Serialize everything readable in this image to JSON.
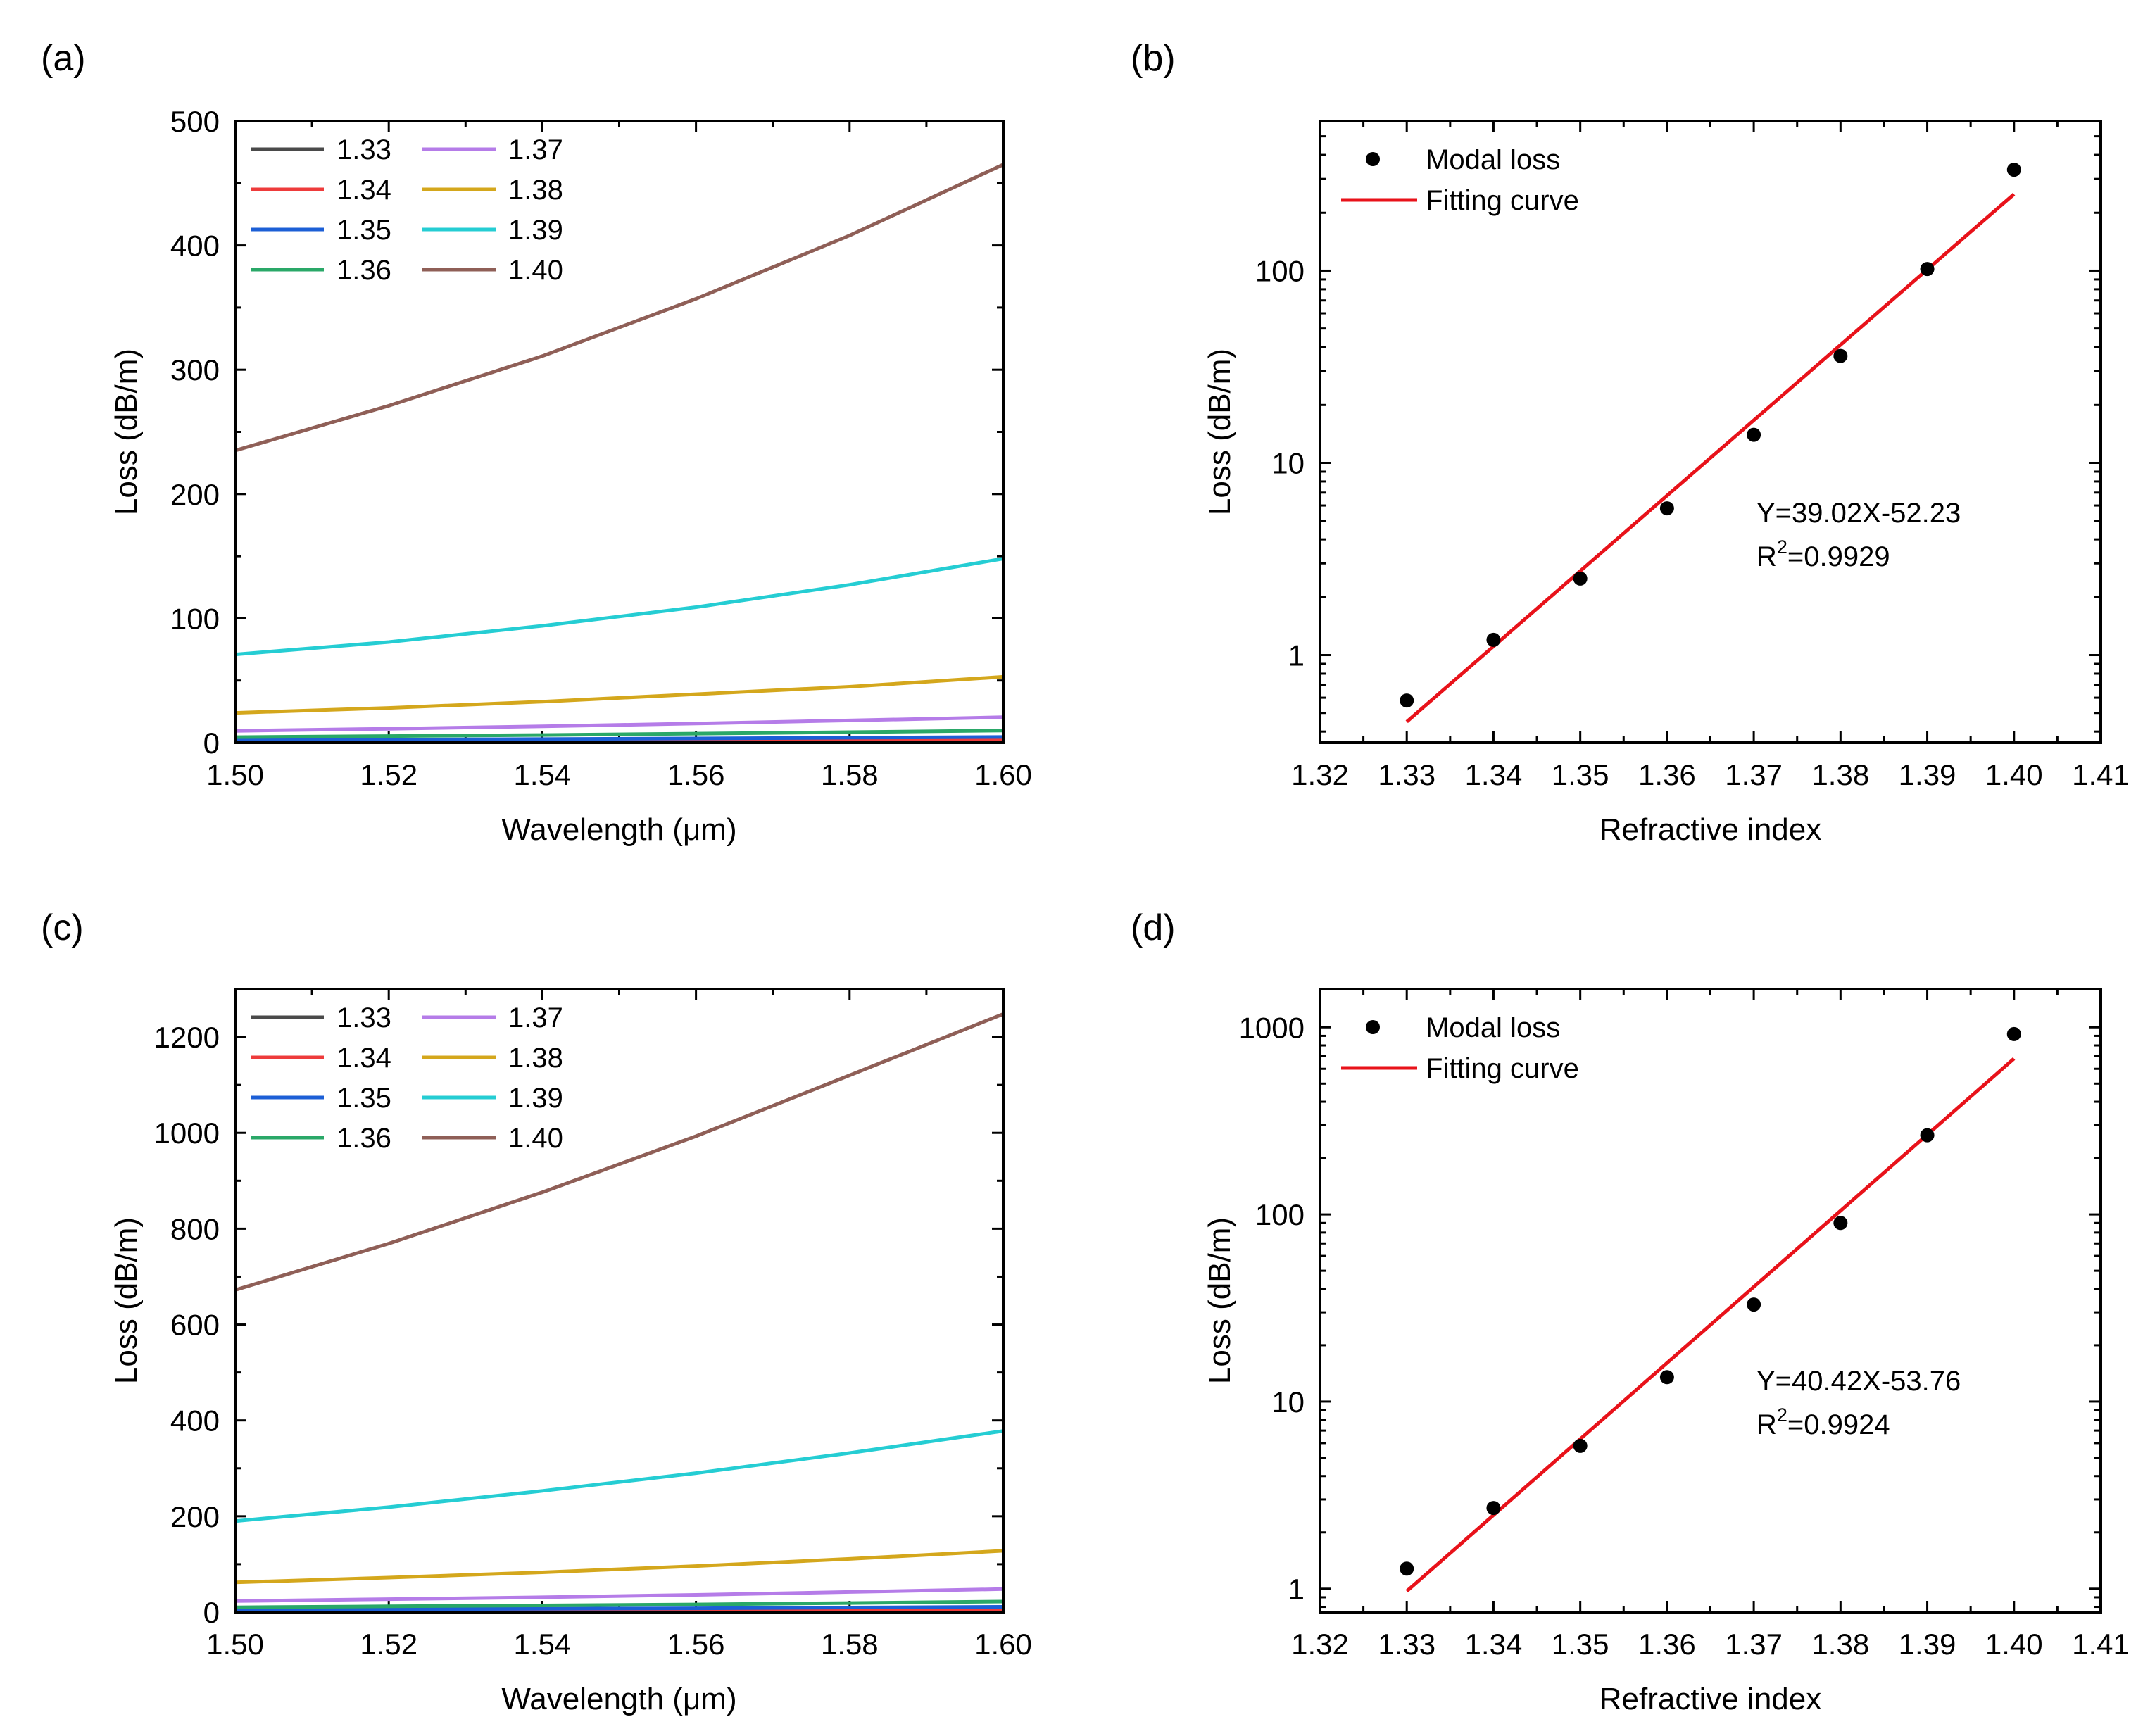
{
  "panel_labels": [
    "(a)",
    "(b)",
    "(c)",
    "(d)"
  ],
  "colors": {
    "1.33": "#4a4a4a",
    "1.34": "#ee3b3b",
    "1.35": "#1c5fd6",
    "1.36": "#2aa868",
    "1.37": "#b57ce8",
    "1.38": "#d4a71c",
    "1.39": "#25cdd3",
    "1.40": "#8f5f57",
    "fit": "#e8121a",
    "marker": "#000000"
  },
  "chart_data": [
    {
      "id": "a",
      "type": "line",
      "xlabel": "Wavelength (μm)",
      "ylabel": "Loss (dB/m)",
      "xlim": [
        1.5,
        1.6
      ],
      "ylim": [
        0,
        500
      ],
      "xticks": [
        1.5,
        1.52,
        1.54,
        1.56,
        1.58,
        1.6
      ],
      "xtick_labels": [
        "1.50",
        "1.52",
        "1.54",
        "1.56",
        "1.58",
        "1.60"
      ],
      "yticks": [
        0,
        100,
        200,
        300,
        400,
        500
      ],
      "ytick_labels": [
        "0",
        "100",
        "200",
        "300",
        "400",
        "500"
      ],
      "legend_position": "top-left",
      "x": [
        1.5,
        1.52,
        1.54,
        1.56,
        1.58,
        1.6
      ],
      "series": [
        {
          "name": "1.33",
          "values": [
            0.5,
            0.6,
            0.7,
            0.8,
            0.9,
            1.0
          ]
        },
        {
          "name": "1.34",
          "values": [
            1.1,
            1.3,
            1.5,
            1.7,
            2.0,
            2.3
          ]
        },
        {
          "name": "1.35",
          "values": [
            2.1,
            2.5,
            2.9,
            3.4,
            4.0,
            4.6
          ]
        },
        {
          "name": "1.36",
          "values": [
            4.5,
            5.3,
            6.2,
            7.3,
            8.5,
            9.8
          ]
        },
        {
          "name": "1.37",
          "values": [
            9.5,
            11.2,
            13.2,
            15.4,
            17.9,
            20.5
          ]
        },
        {
          "name": "1.38",
          "values": [
            24,
            28,
            33,
            39,
            45,
            53
          ]
        },
        {
          "name": "1.39",
          "values": [
            71,
            81,
            94,
            109,
            127,
            148
          ]
        },
        {
          "name": "1.40",
          "values": [
            235,
            271,
            311,
            357,
            408,
            465
          ]
        }
      ]
    },
    {
      "id": "b",
      "type": "scatter",
      "xlabel": "Refractive index",
      "ylabel": "Loss (dB/m)",
      "xlim": [
        1.32,
        1.41
      ],
      "ylim": [
        0.35,
        600
      ],
      "yscale": "log",
      "xticks": [
        1.32,
        1.33,
        1.34,
        1.35,
        1.36,
        1.37,
        1.38,
        1.39,
        1.4,
        1.41
      ],
      "xtick_labels": [
        "1.32",
        "1.33",
        "1.34",
        "1.35",
        "1.36",
        "1.37",
        "1.38",
        "1.39",
        "1.40",
        "1.41"
      ],
      "yticks": [
        1,
        10,
        100
      ],
      "ytick_labels": [
        "1",
        "10",
        "100"
      ],
      "legend_position": "top-left",
      "legend": [
        "Modal loss",
        "Fitting curve"
      ],
      "points": {
        "x": [
          1.33,
          1.34,
          1.35,
          1.36,
          1.37,
          1.38,
          1.39,
          1.4
        ],
        "y": [
          0.58,
          1.2,
          2.5,
          5.8,
          14,
          36,
          102,
          335
        ]
      },
      "fit": {
        "x": [
          1.33,
          1.4
        ],
        "y": [
          0.45,
          250
        ]
      },
      "annotation": {
        "equation": "Y=39.02X-52.23",
        "r2_prefix": "R",
        "r2_sup": "2",
        "r2_value": "=0.9929"
      }
    },
    {
      "id": "c",
      "type": "line",
      "xlabel": "Wavelength (μm)",
      "ylabel": "Loss (dB/m)",
      "xlim": [
        1.5,
        1.6
      ],
      "ylim": [
        0,
        1300
      ],
      "xticks": [
        1.5,
        1.52,
        1.54,
        1.56,
        1.58,
        1.6
      ],
      "xtick_labels": [
        "1.50",
        "1.52",
        "1.54",
        "1.56",
        "1.58",
        "1.60"
      ],
      "yticks": [
        0,
        200,
        400,
        600,
        800,
        1000,
        1200
      ],
      "ytick_labels": [
        "0",
        "200",
        "400",
        "600",
        "800",
        "1000",
        "1200"
      ],
      "legend_position": "top-left",
      "x": [
        1.5,
        1.52,
        1.54,
        1.56,
        1.58,
        1.6
      ],
      "series": [
        {
          "name": "1.33",
          "values": [
            1.0,
            1.2,
            1.4,
            1.7,
            2.0,
            2.3
          ]
        },
        {
          "name": "1.34",
          "values": [
            2.5,
            2.9,
            3.4,
            3.9,
            4.5,
            5.2
          ]
        },
        {
          "name": "1.35",
          "values": [
            5,
            6,
            7,
            8,
            9.5,
            11
          ]
        },
        {
          "name": "1.36",
          "values": [
            10,
            12,
            14,
            16,
            19,
            22
          ]
        },
        {
          "name": "1.37",
          "values": [
            23,
            27,
            31,
            36,
            42,
            48
          ]
        },
        {
          "name": "1.38",
          "values": [
            62,
            72,
            83,
            96,
            111,
            128
          ]
        },
        {
          "name": "1.39",
          "values": [
            190,
            219,
            253,
            290,
            332,
            378
          ]
        },
        {
          "name": "1.40",
          "values": [
            672,
            769,
            876,
            993,
            1120,
            1248
          ]
        }
      ]
    },
    {
      "id": "d",
      "type": "scatter",
      "xlabel": "Refractive index",
      "ylabel": "Loss (dB/m)",
      "xlim": [
        1.32,
        1.41
      ],
      "ylim": [
        0.75,
        1600
      ],
      "yscale": "log",
      "xticks": [
        1.32,
        1.33,
        1.34,
        1.35,
        1.36,
        1.37,
        1.38,
        1.39,
        1.4,
        1.41
      ],
      "xtick_labels": [
        "1.32",
        "1.33",
        "1.34",
        "1.35",
        "1.36",
        "1.37",
        "1.38",
        "1.39",
        "1.40",
        "1.41"
      ],
      "yticks": [
        1,
        10,
        100,
        1000
      ],
      "ytick_labels": [
        "1",
        "10",
        "100",
        "1000"
      ],
      "legend_position": "top-left",
      "legend": [
        "Modal loss",
        "Fitting curve"
      ],
      "points": {
        "x": [
          1.33,
          1.34,
          1.35,
          1.36,
          1.37,
          1.38,
          1.39,
          1.4
        ],
        "y": [
          1.28,
          2.7,
          5.8,
          13.5,
          33,
          90,
          265,
          920
        ]
      },
      "fit": {
        "x": [
          1.33,
          1.4
        ],
        "y": [
          0.97,
          680
        ]
      },
      "annotation": {
        "equation": "Y=40.42X-53.76",
        "r2_prefix": "R",
        "r2_sup": "2",
        "r2_value": "=0.9924"
      }
    }
  ]
}
